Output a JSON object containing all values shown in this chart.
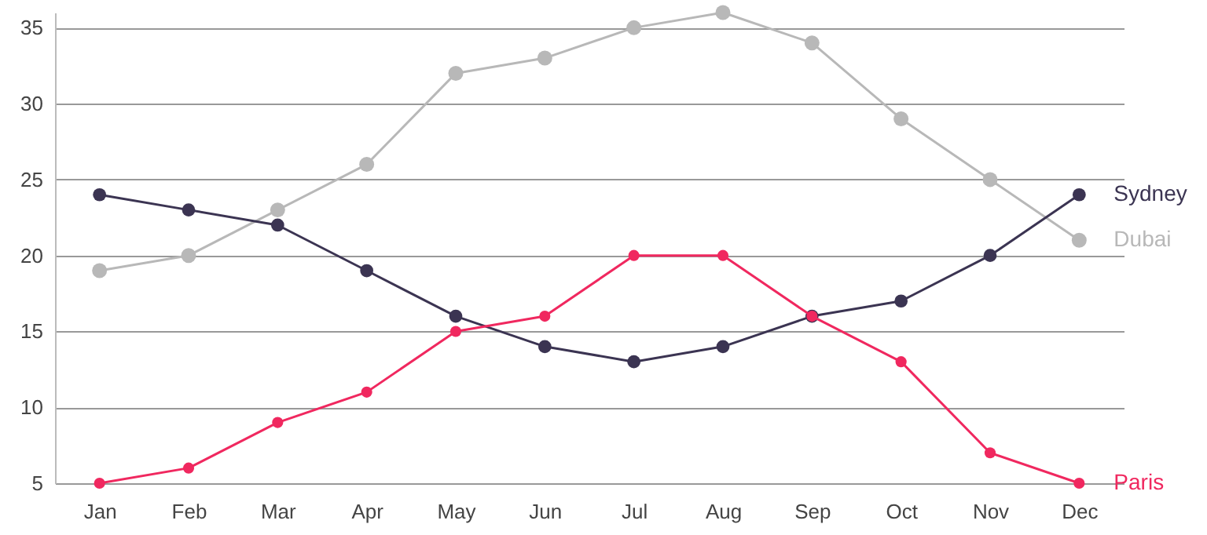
{
  "chart_data": {
    "type": "line",
    "categories": [
      "Jan",
      "Feb",
      "Mar",
      "Apr",
      "May",
      "Jun",
      "Jul",
      "Aug",
      "Sep",
      "Oct",
      "Nov",
      "Dec"
    ],
    "series": [
      {
        "name": "Dubai",
        "color": "#b8b8b8",
        "values": [
          19,
          20,
          23,
          26,
          32,
          33,
          35,
          36,
          34,
          29,
          25,
          21
        ]
      },
      {
        "name": "Sydney",
        "color": "#3b3452",
        "values": [
          24,
          23,
          22,
          19,
          16,
          14,
          13,
          14,
          16,
          17,
          20,
          24
        ]
      },
      {
        "name": "Paris",
        "color": "#f0285f",
        "values": [
          5,
          6,
          9,
          11,
          15,
          16,
          20,
          20,
          16,
          13,
          7,
          5
        ]
      }
    ],
    "ylim": [
      5,
      36
    ],
    "yticks": [
      5,
      10,
      15,
      20,
      25,
      30,
      35
    ],
    "grid": "y",
    "marker": "circle",
    "line_style": "solid"
  }
}
